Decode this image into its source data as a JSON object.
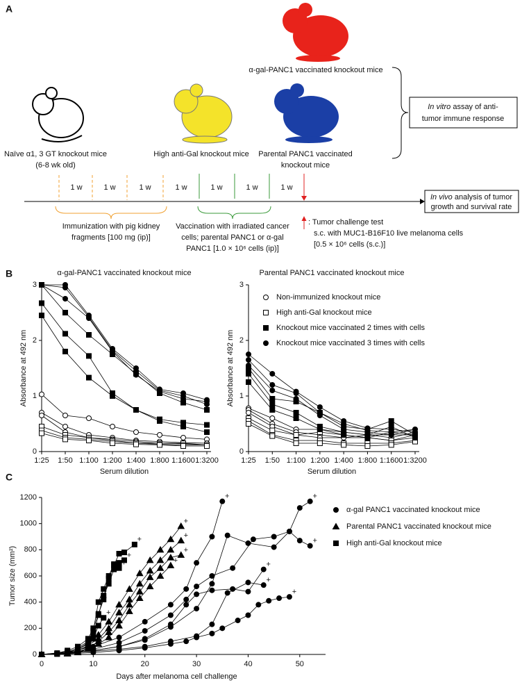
{
  "panel_a": {
    "label": "A",
    "mouse_alpha_gal": "α-gal-PANC1 vaccinated knockout mice",
    "mouse_naive": [
      "Naïve α1, 3 GT knockout mice",
      "(6-8 wk old)"
    ],
    "mouse_high": "High anti-Gal knockout mice",
    "mouse_parental": [
      "Parental PANC1 vaccinated",
      "knockout mice"
    ],
    "in_vitro_box": {
      "italic": "In vitro",
      "rest": " assay of anti-",
      "line2": "tumor immune response"
    },
    "in_vivo_box": {
      "italic": "In vivo",
      "rest": " analysis of tumor",
      "line2": "growth and survival rate"
    },
    "intervals": [
      "1 w",
      "1 w",
      "1 w",
      "1 w",
      "1 w",
      "1 w",
      "1 w"
    ],
    "immunization": [
      "Immunization with pig kidney",
      "fragments [100 mg (ip)]"
    ],
    "vaccination": [
      "Vaccination with irradiated cancer",
      "cells; parental PANC1 or α-gal",
      "PANC1 [1.0 × 10⁶ cells (ip)]"
    ],
    "challenge": [
      ": Tumor challenge test",
      "s.c. with MUC1-B16F10 live melanoma cells",
      "[0.5 × 10⁶ cells (s.c.)]"
    ]
  },
  "panel_b_label": "B",
  "panel_c_label": "C",
  "chart_data": [
    {
      "type": "line",
      "title": "α-gal-PANC1 vaccinated knockout mice",
      "xlabel": "Serum dilution",
      "ylabel": "Absorbance at 492 nm",
      "color": "#000000",
      "categories": [
        "1:25",
        "1:50",
        "1:100",
        "1:200",
        "1:400",
        "1:800",
        "1:1600",
        "1:3200"
      ],
      "ylim": [
        0,
        3
      ],
      "yticks": [
        0,
        1,
        2,
        3
      ],
      "series": [
        {
          "marker": "open-circle",
          "values": [
            1.03,
            0.65,
            0.6,
            0.45,
            0.35,
            0.3,
            0.25,
            0.22
          ]
        },
        {
          "marker": "open-circle",
          "values": [
            0.7,
            0.45,
            0.3,
            0.25,
            0.2,
            0.18,
            0.16,
            0.15
          ]
        },
        {
          "marker": "open-circle",
          "values": [
            0.65,
            0.35,
            0.25,
            0.22,
            0.18,
            0.15,
            0.14,
            0.12
          ]
        },
        {
          "marker": "open-square",
          "values": [
            0.45,
            0.3,
            0.25,
            0.2,
            0.15,
            0.15,
            0.15,
            0.12
          ]
        },
        {
          "marker": "open-square",
          "values": [
            0.38,
            0.25,
            0.22,
            0.18,
            0.15,
            0.13,
            0.12,
            0.12
          ]
        },
        {
          "marker": "open-square",
          "values": [
            0.33,
            0.22,
            0.2,
            0.15,
            0.13,
            0.12,
            0.1,
            0.1
          ]
        },
        {
          "marker": "filled-square",
          "values": [
            3,
            2.5,
            2.1,
            1.75,
            1.4,
            1.05,
            0.88,
            0.75
          ]
        },
        {
          "marker": "filled-square",
          "values": [
            2.67,
            2.12,
            1.72,
            1.05,
            0.75,
            0.58,
            0.52,
            0.48
          ]
        },
        {
          "marker": "filled-square",
          "values": [
            2.45,
            1.8,
            1.33,
            1.0,
            0.75,
            0.55,
            0.45,
            0.35
          ]
        },
        {
          "marker": "filled-circle",
          "values": [
            3,
            3,
            2.45,
            1.85,
            1.5,
            1.12,
            1.05,
            0.93
          ]
        },
        {
          "marker": "filled-circle",
          "values": [
            3,
            2.95,
            2.42,
            1.82,
            1.45,
            1.1,
            1.0,
            0.85
          ]
        },
        {
          "marker": "filled-circle",
          "values": [
            3,
            2.75,
            2.4,
            1.8,
            1.38,
            1.08,
            0.95,
            0.9
          ]
        }
      ]
    },
    {
      "type": "line",
      "title": "Parental PANC1 vaccinated knockout mice",
      "xlabel": "Serum dilution",
      "ylabel": "Absorbance at 492 nm",
      "color": "#000000",
      "categories": [
        "1:25",
        "1:50",
        "1:100",
        "1:200",
        "1:400",
        "1:800",
        "1:1600",
        "1:3200"
      ],
      "ylim": [
        0,
        3
      ],
      "yticks": [
        0,
        1,
        2,
        3
      ],
      "legend": [
        {
          "name": "Non-immunized knockout mice",
          "marker": "open-circle"
        },
        {
          "name": "High anti-Gal knockout mice",
          "marker": "open-square"
        },
        {
          "name": "Knockout mice vaccinated 2 times with cells",
          "marker": "filled-square"
        },
        {
          "name": "Knockout mice vaccinated 3 times with cells",
          "marker": "filled-circle"
        }
      ],
      "series": [
        {
          "marker": "open-circle",
          "values": [
            0.78,
            0.6,
            0.4,
            0.4,
            0.35,
            0.3,
            0.3,
            0.4
          ]
        },
        {
          "marker": "open-circle",
          "values": [
            0.75,
            0.5,
            0.35,
            0.3,
            0.25,
            0.3,
            0.25,
            0.35
          ]
        },
        {
          "marker": "open-circle",
          "values": [
            0.7,
            0.45,
            0.3,
            0.25,
            0.25,
            0.25,
            0.2,
            0.3
          ]
        },
        {
          "marker": "open-square",
          "values": [
            0.6,
            0.38,
            0.3,
            0.35,
            0.3,
            0.25,
            0.2,
            0.25
          ]
        },
        {
          "marker": "open-square",
          "values": [
            0.55,
            0.3,
            0.2,
            0.2,
            0.15,
            0.15,
            0.15,
            0.2
          ]
        },
        {
          "marker": "open-square",
          "values": [
            0.5,
            0.28,
            0.15,
            0.15,
            0.12,
            0.1,
            0.12,
            0.18
          ]
        },
        {
          "marker": "filled-square",
          "values": [
            1.5,
            0.95,
            0.9,
            0.7,
            0.45,
            0.4,
            0.55,
            0.3
          ]
        },
        {
          "marker": "filled-square",
          "values": [
            1.4,
            0.85,
            0.7,
            0.45,
            0.35,
            0.3,
            0.45,
            0.25
          ]
        },
        {
          "marker": "filled-square",
          "values": [
            1.25,
            0.75,
            0.6,
            0.4,
            0.3,
            0.25,
            0.35,
            0.3
          ]
        },
        {
          "marker": "filled-circle",
          "values": [
            1.75,
            1.4,
            1.08,
            0.8,
            0.55,
            0.42,
            0.4,
            0.35
          ]
        },
        {
          "marker": "filled-circle",
          "values": [
            1.65,
            1.2,
            1.05,
            0.7,
            0.5,
            0.38,
            0.35,
            0.4
          ]
        },
        {
          "marker": "filled-circle",
          "values": [
            1.55,
            1.1,
            0.95,
            0.65,
            0.4,
            0.35,
            0.3,
            0.3
          ]
        }
      ]
    },
    {
      "type": "scatter-line",
      "xlabel": "Days after melanoma cell challenge",
      "ylabel": "Tumor size (mm²)",
      "color": "#000000",
      "xlim": [
        0,
        55
      ],
      "xticks": [
        0,
        10,
        20,
        30,
        40,
        50
      ],
      "ylim": [
        0,
        1200
      ],
      "yticks": [
        0,
        200,
        400,
        600,
        800,
        1000,
        1200
      ],
      "legend": [
        {
          "name": "α-gal PANC1 vaccinated knockout mice",
          "marker": "filled-circle"
        },
        {
          "name": "Parental PANC1 vaccinated knockout mice",
          "marker": "filled-triangle"
        },
        {
          "name": "High anti-Gal knockout mice",
          "marker": "filled-square"
        }
      ],
      "series": [
        {
          "marker": "filled-square",
          "end_label": "+",
          "x": [
            0,
            3,
            5,
            7,
            9,
            10,
            11,
            12,
            13,
            14,
            15,
            16,
            18
          ],
          "values": [
            0,
            10,
            30,
            60,
            120,
            200,
            310,
            420,
            580,
            680,
            770,
            780,
            840
          ]
        },
        {
          "marker": "filled-square",
          "end_label": "+",
          "x": [
            0,
            3,
            5,
            7,
            9,
            10,
            11,
            12,
            13,
            14,
            15,
            16
          ],
          "values": [
            0,
            5,
            20,
            50,
            100,
            180,
            400,
            500,
            600,
            690,
            700,
            720
          ]
        },
        {
          "marker": "filled-square",
          "end_label": "+",
          "x": [
            0,
            3,
            5,
            7,
            9,
            10,
            11,
            12,
            13,
            14,
            15
          ],
          "values": [
            0,
            5,
            15,
            40,
            80,
            150,
            300,
            450,
            540,
            650,
            660
          ]
        },
        {
          "marker": "filled-square",
          "end_label": "+",
          "x": [
            0,
            3,
            5,
            7,
            9,
            10,
            11,
            12
          ],
          "values": [
            0,
            3,
            10,
            30,
            60,
            120,
            220,
            280
          ]
        },
        {
          "marker": "filled-triangle",
          "end_label": "+",
          "x": [
            0,
            5,
            7,
            9,
            11,
            13,
            15,
            17,
            19,
            21,
            23,
            25,
            27
          ],
          "values": [
            0,
            10,
            40,
            90,
            150,
            250,
            380,
            500,
            620,
            720,
            800,
            880,
            980
          ]
        },
        {
          "marker": "filled-triangle",
          "end_label": "+",
          "x": [
            0,
            5,
            7,
            9,
            11,
            13,
            15,
            17,
            19,
            21,
            23,
            25,
            27
          ],
          "values": [
            0,
            8,
            30,
            70,
            120,
            200,
            320,
            420,
            540,
            640,
            720,
            800,
            870
          ]
        },
        {
          "marker": "filled-triangle",
          "end_label": "+",
          "x": [
            0,
            5,
            7,
            9,
            11,
            13,
            15,
            17,
            19,
            21,
            23,
            25,
            27
          ],
          "values": [
            0,
            5,
            20,
            50,
            100,
            170,
            260,
            380,
            480,
            590,
            660,
            740,
            760
          ]
        },
        {
          "marker": "filled-triangle",
          "end_label": "+",
          "x": [
            0,
            5,
            7,
            9,
            11,
            13,
            15,
            17,
            19,
            21,
            23,
            25
          ],
          "values": [
            0,
            5,
            15,
            40,
            80,
            130,
            220,
            330,
            430,
            520,
            600,
            680
          ]
        },
        {
          "marker": "filled-circle",
          "end_label": "+",
          "x": [
            0,
            5,
            10,
            15,
            20,
            25,
            28,
            30,
            33,
            35
          ],
          "values": [
            0,
            20,
            60,
            130,
            250,
            380,
            500,
            700,
            900,
            1170
          ]
        },
        {
          "marker": "filled-circle",
          "end_label": "+",
          "x": [
            0,
            5,
            10,
            15,
            20,
            25,
            28,
            30,
            33,
            37,
            41,
            45,
            48,
            50,
            52
          ],
          "values": [
            0,
            15,
            40,
            90,
            180,
            300,
            420,
            520,
            600,
            660,
            880,
            900,
            940,
            1120,
            1170
          ]
        },
        {
          "marker": "filled-circle",
          "end_label": "+",
          "x": [
            0,
            5,
            10,
            15,
            20,
            25,
            28,
            30,
            33,
            37,
            40,
            43
          ],
          "values": [
            0,
            10,
            30,
            60,
            120,
            230,
            380,
            460,
            490,
            500,
            480,
            650
          ]
        },
        {
          "marker": "filled-circle",
          "end_label": "+",
          "x": [
            0,
            5,
            10,
            15,
            20,
            25,
            30,
            33,
            36,
            40,
            45,
            48,
            50,
            52
          ],
          "values": [
            0,
            10,
            30,
            60,
            110,
            210,
            350,
            540,
            910,
            850,
            820,
            940,
            870,
            830
          ]
        },
        {
          "marker": "filled-circle",
          "end_label": "+",
          "x": [
            0,
            5,
            10,
            15,
            20,
            25,
            30,
            33,
            36,
            40,
            43
          ],
          "values": [
            0,
            10,
            25,
            40,
            60,
            100,
            140,
            230,
            470,
            550,
            530
          ]
        },
        {
          "marker": "filled-circle",
          "end_label": "+",
          "x": [
            0,
            5,
            10,
            15,
            20,
            25,
            28,
            30,
            33,
            35,
            38,
            40,
            42,
            44,
            46,
            48
          ],
          "values": [
            0,
            5,
            15,
            30,
            50,
            80,
            100,
            130,
            160,
            200,
            260,
            300,
            380,
            410,
            430,
            440
          ]
        }
      ]
    }
  ]
}
